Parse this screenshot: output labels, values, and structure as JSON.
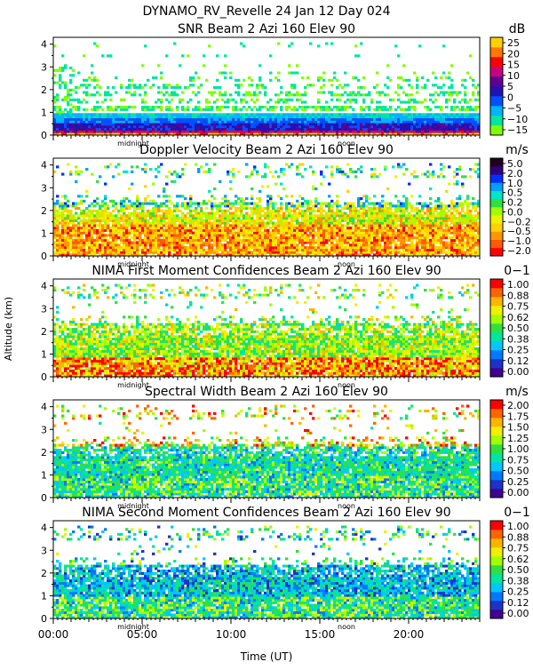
{
  "title": "DYNAMO_RV_Revelle  24 Jan 12 Day 024",
  "ylabel": "Altitude (km)",
  "xlabel": "Time (UT)",
  "x_ticks": [
    "00:00",
    "05:00",
    "10:00",
    "15:00",
    "20:00"
  ],
  "y_ticks": [
    "0",
    "1",
    "2",
    "3",
    "4"
  ],
  "markers": {
    "midnight": "midnight",
    "noon": "noon"
  },
  "chart_data": [
    {
      "type": "heatmap",
      "title": "SNR Beam 2 Azi 160 Elev 90",
      "unit": "dB",
      "colorbar_ticks": [
        "25",
        "20",
        "15",
        "10",
        "5",
        "0",
        "−5",
        "−10",
        "−15"
      ],
      "colorscale": [
        "#80ff00",
        "#00e6a0",
        "#00b4ff",
        "#0050ff",
        "#1e14b4",
        "#600090",
        "#c80080",
        "#ff0000",
        "#ff7800",
        "#ffd000"
      ],
      "xlim": [
        0,
        24
      ],
      "ylim": [
        0,
        4.3
      ],
      "pattern": "snr"
    },
    {
      "type": "heatmap",
      "title": "Doppler Velocity Beam 2 Azi 160 Elev 90",
      "unit": "m/s",
      "colorbar_ticks": [
        "5.0",
        "2.0",
        "1.0",
        "0.5",
        "0.2",
        "0.0",
        "−0.2",
        "−0.5",
        "−1.0",
        "−2.0"
      ],
      "colorscale": [
        "#ff0000",
        "#ff5a00",
        "#ff9600",
        "#ffd200",
        "#f0f000",
        "#a0ff00",
        "#30e040",
        "#00e6c8",
        "#00a0ff",
        "#0030ff",
        "#300080",
        "#200020"
      ],
      "xlim": [
        0,
        24
      ],
      "ylim": [
        0,
        4.3
      ],
      "pattern": "doppler"
    },
    {
      "type": "heatmap",
      "title": "NIMA First Moment Confidences Beam 2 Azi 160 Elev 90",
      "unit": "0−1",
      "colorbar_ticks": [
        "1.00",
        "0.88",
        "0.75",
        "0.62",
        "0.50",
        "0.38",
        "0.25",
        "0.12",
        "0.00"
      ],
      "colorscale": [
        "#400090",
        "#1e32c8",
        "#0078ff",
        "#00c8ff",
        "#00e6a0",
        "#30e040",
        "#a0ff00",
        "#f0f000",
        "#ffb400",
        "#ff6400",
        "#ff0000"
      ],
      "xlim": [
        0,
        24
      ],
      "ylim": [
        0,
        4.3
      ],
      "pattern": "nima1"
    },
    {
      "type": "heatmap",
      "title": "Spectral Width Beam 2 Azi 160 Elev 90",
      "unit": "m/s",
      "colorbar_ticks": [
        "2.00",
        "1.75",
        "1.50",
        "1.25",
        "1.00",
        "0.75",
        "0.50",
        "0.25",
        "0.00"
      ],
      "colorscale": [
        "#400090",
        "#1e32c8",
        "#0078ff",
        "#00c8ff",
        "#00e6a0",
        "#30e040",
        "#a0ff00",
        "#f0f000",
        "#ffb400",
        "#ff6400",
        "#ff0000"
      ],
      "xlim": [
        0,
        24
      ],
      "ylim": [
        0,
        4.3
      ],
      "pattern": "width"
    },
    {
      "type": "heatmap",
      "title": "NIMA Second Moment Confidences Beam 2 Azi 160 Elev 90",
      "unit": "0−1",
      "colorbar_ticks": [
        "1.00",
        "0.88",
        "0.75",
        "0.62",
        "0.50",
        "0.38",
        "0.25",
        "0.12",
        "0.00"
      ],
      "colorscale": [
        "#400090",
        "#1e32c8",
        "#0078ff",
        "#00c8ff",
        "#00e6a0",
        "#30e040",
        "#a0ff00",
        "#f0f000",
        "#ffb400",
        "#ff6400",
        "#ff0000"
      ],
      "xlim": [
        0,
        24
      ],
      "ylim": [
        0,
        4.3
      ],
      "pattern": "nima2"
    }
  ]
}
